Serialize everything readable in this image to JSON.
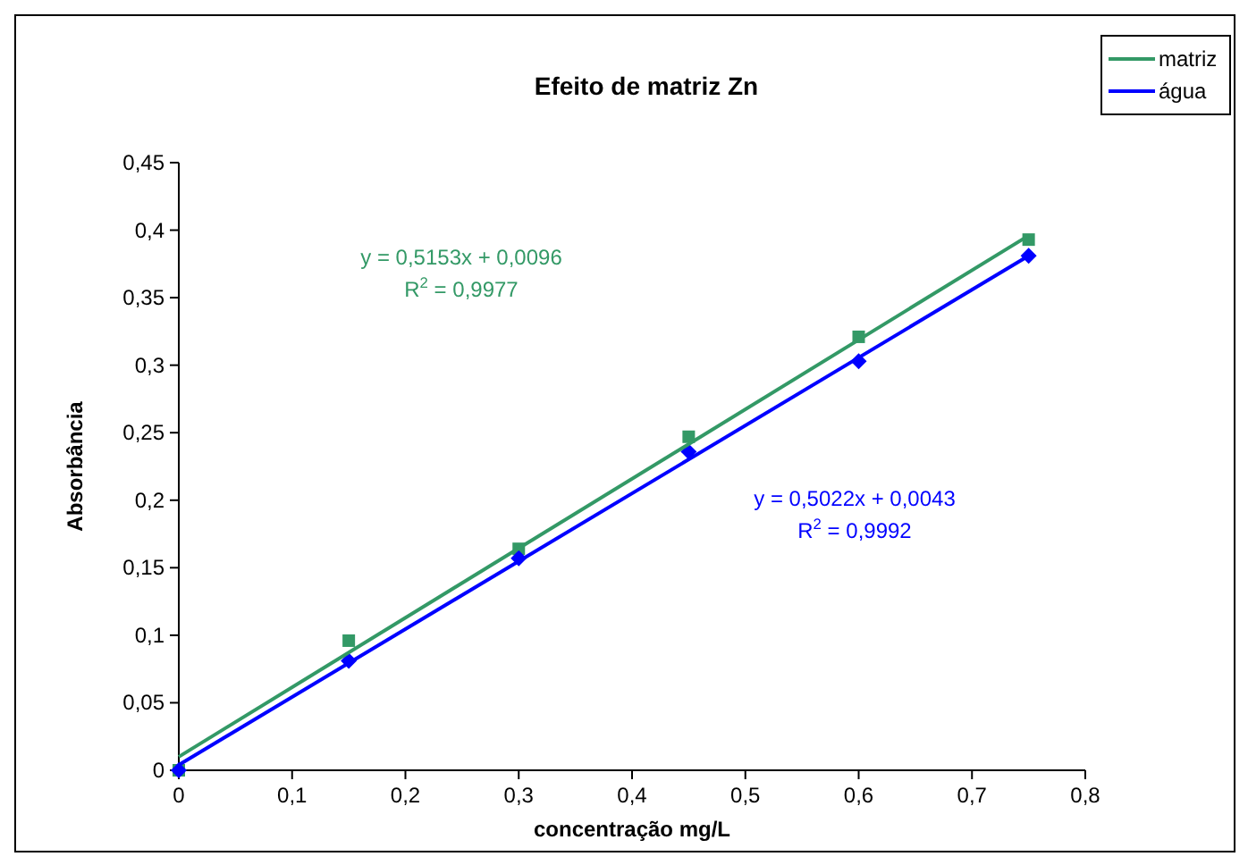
{
  "chart_data": {
    "type": "scatter",
    "title": "Efeito de matriz Zn",
    "xlabel": "concentração mg/L",
    "ylabel": "Absorbância",
    "xlim": [
      0,
      0.8
    ],
    "ylim": [
      0,
      0.45
    ],
    "xticks": [
      0,
      {
        "value": 0.1,
        "label": "0,1"
      },
      {
        "value": 0.2,
        "label": "0,2"
      },
      {
        "value": 0.3,
        "label": "0,3"
      },
      {
        "value": 0.4,
        "label": "0,4"
      },
      {
        "value": 0.5,
        "label": "0,5"
      },
      {
        "value": 0.6,
        "label": "0,6"
      },
      {
        "value": 0.7,
        "label": "0,7"
      },
      {
        "value": 0.8,
        "label": "0,8"
      }
    ],
    "yticks": [
      0,
      {
        "value": 0.05,
        "label": "0,05"
      },
      {
        "value": 0.1,
        "label": "0,1"
      },
      {
        "value": 0.15,
        "label": "0,15"
      },
      {
        "value": 0.2,
        "label": "0,2"
      },
      {
        "value": 0.25,
        "label": "0,25"
      },
      {
        "value": 0.3,
        "label": "0,3"
      },
      {
        "value": 0.35,
        "label": "0,35"
      },
      {
        "value": 0.4,
        "label": "0,4"
      },
      {
        "value": 0.45,
        "label": "0,45"
      }
    ],
    "grid": false,
    "legend": "top right",
    "series": [
      {
        "type": "scatter",
        "marker": "square",
        "color": "#339966",
        "x": [
          0,
          0.15,
          0.3,
          0.45,
          0.6,
          0.75
        ],
        "values": [
          0,
          0.096,
          0.164,
          0.247,
          0.321,
          0.393
        ]
      },
      {
        "type": "scatter",
        "marker": "diamond",
        "color": "#0000ff",
        "x": [
          0,
          0.15,
          0.3,
          0.45,
          0.6,
          0.75
        ],
        "values": [
          0,
          0.081,
          0.157,
          0.236,
          0.303,
          0.381
        ]
      },
      {
        "type": "line",
        "marker": "none",
        "name": "matriz",
        "color": "#339966",
        "x": [
          0,
          0.75
        ],
        "values": [
          0.01,
          0.396
        ]
      },
      {
        "type": "line",
        "marker": "none",
        "name": "água",
        "color": "#0000ff",
        "x": [
          0,
          0.75
        ],
        "values": [
          0.004,
          0.381
        ]
      }
    ],
    "annotations": [
      "y = 0,5153x + 0,0096",
      "R$^{2}$ = 0,9977",
      "y = 0,5022x + 0,0043",
      "R$^{2}$ = 0,9992"
    ]
  }
}
